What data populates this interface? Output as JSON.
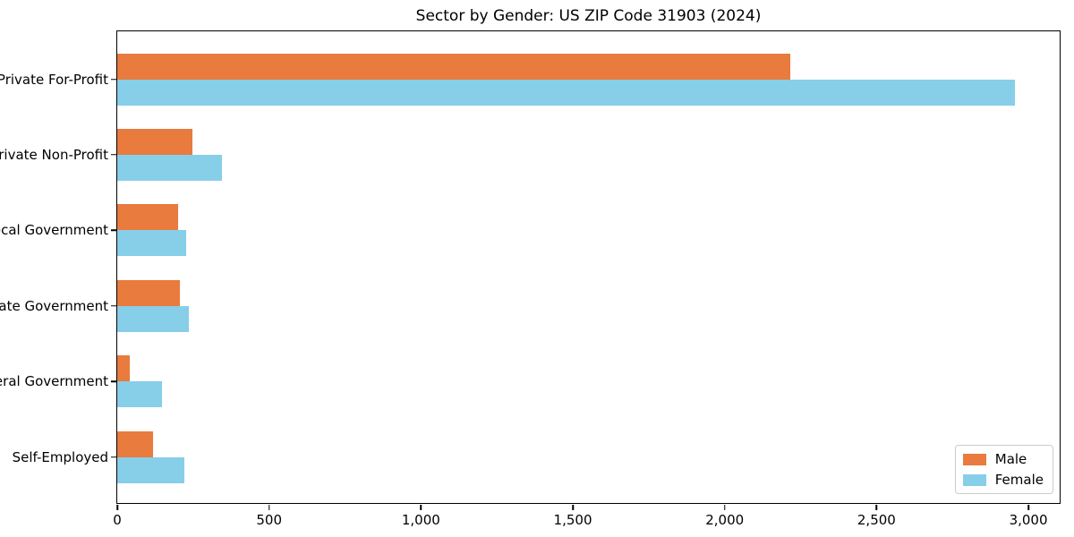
{
  "chart_data": {
    "type": "bar",
    "orientation": "horizontal",
    "title": "Sector by Gender: US ZIP Code 31903 (2024)",
    "xlabel": "",
    "ylabel": "",
    "categories": [
      "Private For-Profit",
      "Private Non-Profit",
      "Local Government",
      "State Government",
      "Federal Government",
      "Self-Employed"
    ],
    "series": [
      {
        "name": "Male",
        "color": "#e87b3d",
        "values": [
          2215,
          248,
          201,
          206,
          41,
          117
        ]
      },
      {
        "name": "Female",
        "color": "#87cee9",
        "values": [
          2957,
          345,
          228,
          235,
          147,
          221
        ]
      }
    ],
    "xlim": [
      0,
      3103
    ],
    "xticks": [
      {
        "value": 0,
        "label": "0"
      },
      {
        "value": 500,
        "label": "500"
      },
      {
        "value": 1000,
        "label": "1,000"
      },
      {
        "value": 1500,
        "label": "1,500"
      },
      {
        "value": 2000,
        "label": "2,000"
      },
      {
        "value": 2500,
        "label": "2,500"
      },
      {
        "value": 3000,
        "label": "3,000"
      }
    ],
    "grid": false,
    "legend_position": "lower right",
    "colors": {
      "axis": "#000000",
      "legend_border": "#cccccc",
      "background": "#ffffff"
    }
  }
}
